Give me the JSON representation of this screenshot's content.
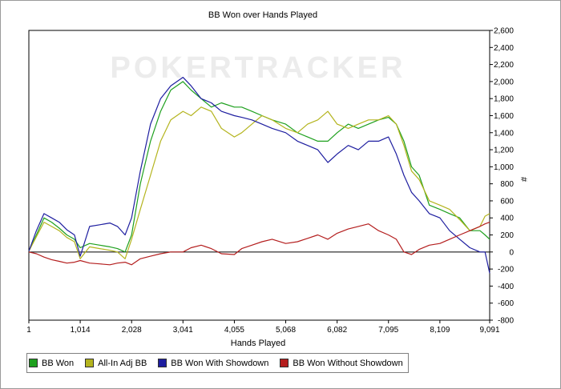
{
  "chart_data": {
    "type": "line",
    "title": "BB Won over Hands Played",
    "xlabel": "Hands Played",
    "ylabel": "#",
    "watermark": "POKERTRACKER",
    "xlim": [
      1,
      9091
    ],
    "ylim": [
      -800,
      2600
    ],
    "x_ticks": [
      1,
      1014,
      2028,
      3041,
      4055,
      5068,
      6082,
      7095,
      8109,
      9091
    ],
    "x_tick_labels": [
      "1",
      "1,014",
      "2,028",
      "3,041",
      "4,055",
      "5,068",
      "6,082",
      "7,095",
      "8,109",
      "9,091"
    ],
    "y_ticks": [
      -800,
      -600,
      -400,
      -200,
      0,
      200,
      400,
      600,
      800,
      1000,
      1200,
      1400,
      1600,
      1800,
      2000,
      2200,
      2400,
      2600
    ],
    "y_tick_labels": [
      "-800",
      "-600",
      "-400",
      "-200",
      "0",
      "200",
      "400",
      "600",
      "800",
      "1,000",
      "1,200",
      "1,400",
      "1,600",
      "1,800",
      "2,000",
      "2,200",
      "2,400",
      "2,600"
    ],
    "y_axis_side": "right",
    "grid": false,
    "legend_position": "bottom",
    "x": [
      1,
      150,
      300,
      450,
      600,
      750,
      900,
      1014,
      1200,
      1400,
      1600,
      1750,
      1900,
      2028,
      2200,
      2400,
      2600,
      2800,
      3041,
      3200,
      3400,
      3600,
      3800,
      4055,
      4200,
      4400,
      4600,
      4800,
      5068,
      5300,
      5500,
      5700,
      5900,
      6082,
      6300,
      6500,
      6700,
      6900,
      7095,
      7250,
      7400,
      7550,
      7700,
      7900,
      8109,
      8300,
      8500,
      8700,
      8900,
      9000,
      9091
    ],
    "series": [
      {
        "name": "BB Won",
        "color": "#1ea01e",
        "values": [
          10,
          200,
          400,
          350,
          280,
          200,
          150,
          50,
          100,
          80,
          60,
          40,
          0,
          200,
          800,
          1300,
          1650,
          1900,
          2000,
          1900,
          1800,
          1700,
          1750,
          1700,
          1700,
          1650,
          1600,
          1550,
          1500,
          1400,
          1350,
          1300,
          1300,
          1400,
          1500,
          1450,
          1500,
          1550,
          1580,
          1500,
          1300,
          1000,
          900,
          550,
          500,
          450,
          400,
          250,
          250,
          200,
          150
        ]
      },
      {
        "name": "All-In Adj BB",
        "color": "#b4b41e",
        "values": [
          10,
          180,
          350,
          300,
          250,
          170,
          120,
          -80,
          60,
          40,
          20,
          0,
          -80,
          150,
          500,
          900,
          1300,
          1550,
          1650,
          1600,
          1700,
          1650,
          1450,
          1350,
          1400,
          1500,
          1600,
          1550,
          1450,
          1400,
          1500,
          1550,
          1650,
          1500,
          1450,
          1500,
          1550,
          1550,
          1600,
          1500,
          1250,
          950,
          850,
          600,
          550,
          500,
          380,
          250,
          300,
          420,
          450
        ]
      },
      {
        "name": "BB Won With Showdown",
        "color": "#1e1ea0",
        "values": [
          10,
          250,
          450,
          400,
          350,
          260,
          200,
          -50,
          300,
          320,
          340,
          300,
          200,
          400,
          950,
          1500,
          1800,
          1950,
          2050,
          1950,
          1800,
          1750,
          1650,
          1600,
          1580,
          1550,
          1500,
          1450,
          1400,
          1300,
          1250,
          1200,
          1050,
          1150,
          1250,
          1200,
          1300,
          1300,
          1350,
          1150,
          900,
          700,
          600,
          450,
          400,
          250,
          150,
          50,
          0,
          0,
          -250
        ]
      },
      {
        "name": "BB Won Without Showdown",
        "color": "#b41e1e",
        "values": [
          0,
          -20,
          -60,
          -90,
          -110,
          -130,
          -120,
          -100,
          -130,
          -140,
          -150,
          -130,
          -120,
          -150,
          -80,
          -50,
          -20,
          0,
          0,
          50,
          80,
          40,
          -20,
          -30,
          40,
          80,
          120,
          150,
          100,
          120,
          160,
          200,
          150,
          220,
          270,
          300,
          330,
          250,
          200,
          150,
          0,
          -30,
          30,
          80,
          100,
          150,
          200,
          250,
          300,
          330,
          350
        ]
      }
    ]
  }
}
